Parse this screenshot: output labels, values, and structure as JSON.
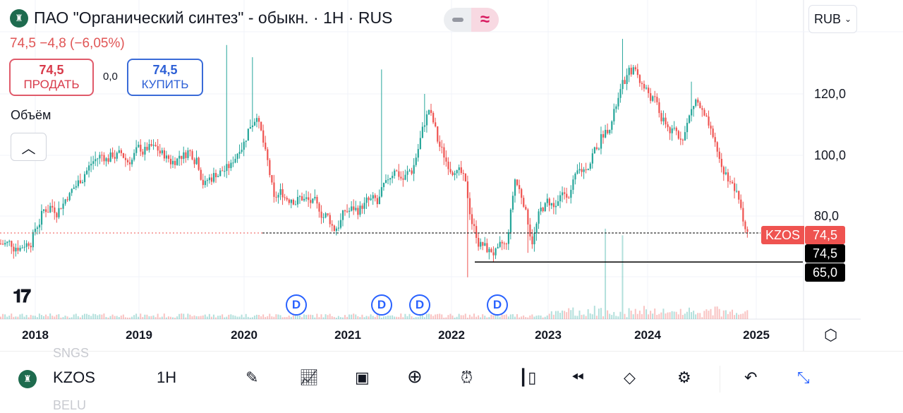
{
  "header": {
    "title": "ПАО \"Органический синтез\" - обыкн. · 1Н · RUS",
    "change": "74,5  −4,8 (−6,05%)"
  },
  "trade": {
    "sell_price": "74,5",
    "sell_label": "ПРОДАТЬ",
    "spread": "0,0",
    "buy_price": "74,5",
    "buy_label": "КУПИТЬ"
  },
  "volume_label": "Объём",
  "currency": "RUB",
  "price_axis": {
    "ticks": [
      "120,0",
      "100,0",
      "80,0"
    ],
    "last_price": "74,5",
    "symbol_tag": "KZOS",
    "line_labels": [
      "74,5",
      "65,0"
    ]
  },
  "time_axis": [
    "2018",
    "2019",
    "2020",
    "2021",
    "2022",
    "2023",
    "2024",
    "2025"
  ],
  "dividends": [
    "D",
    "D",
    "D",
    "D"
  ],
  "colors": {
    "up": "#26a69a",
    "down": "#ef5350",
    "accent": "#2962ff"
  },
  "price_series": {
    "start": "2017-09",
    "interval": "1M",
    "closes": [
      71,
      70,
      71,
      73,
      80,
      83,
      82,
      87,
      90,
      94,
      98,
      100,
      99,
      100,
      98,
      101,
      101,
      102,
      100,
      98,
      100,
      101,
      99,
      90,
      93,
      95,
      96,
      103,
      108,
      114,
      100,
      85,
      88,
      86,
      86,
      85,
      83,
      80,
      76,
      80,
      82,
      82,
      85,
      84,
      90,
      96,
      92,
      95,
      105,
      115,
      105,
      98,
      96,
      92,
      78,
      70,
      68,
      68,
      70,
      92,
      85,
      72,
      82,
      85,
      84,
      88,
      92,
      95,
      100,
      105,
      110,
      118,
      125,
      128,
      122,
      118,
      112,
      108,
      106,
      110,
      118,
      112,
      104,
      96,
      92,
      85,
      74.5
    ],
    "peaks": {
      "2019-11": 136,
      "2020-02": 132,
      "2021-05": 128,
      "2021-10": 120,
      "2023-09": 138,
      "2024-05": 124
    },
    "lows": {
      "2022-03": 60,
      "2022-10": 68
    }
  },
  "horizontal_lines": [
    74.5,
    65.0
  ],
  "toolbar": {
    "symbol": "KZOS",
    "interval": "1H",
    "prev_symbol": "SNGS",
    "next_symbol": "BELU",
    "icons": [
      "pencil-icon",
      "indicators-icon",
      "layouts-icon",
      "add-icon",
      "alert-icon",
      "candles-icon",
      "replay-icon",
      "layers-icon",
      "settings-icon",
      "undo-icon",
      "fullscreen-exit-icon"
    ]
  }
}
